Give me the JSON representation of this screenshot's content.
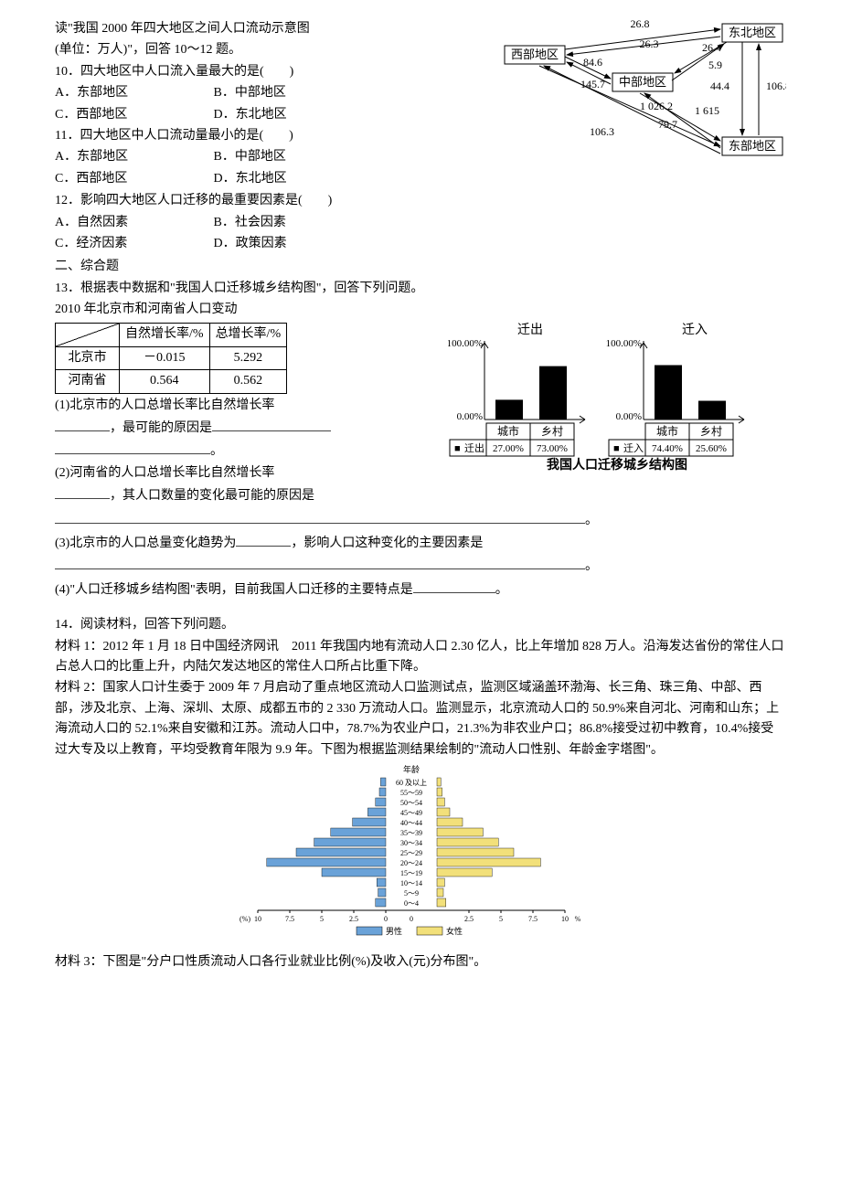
{
  "intro1": "读\"我国 2000 年四大地区之间人口流动示意图",
  "intro2": "(单位：万人)\"，回答 10～12 题。",
  "q10": {
    "stem": "10．四大地区中人口流入量最大的是(　　)",
    "a": "A．东部地区",
    "b": "B．中部地区",
    "c": "C．西部地区",
    "d": "D．东北地区"
  },
  "q11": {
    "stem": "11．四大地区中人口流动量最小的是(　　)",
    "a": "A．东部地区",
    "b": "B．中部地区",
    "c": "C．西部地区",
    "d": "D．东北地区"
  },
  "q12": {
    "stem": "12．影响四大地区人口迁移的最重要因素是(　　)",
    "a": "A．自然因素",
    "b": "B．社会因素",
    "c": "C．经济因素",
    "d": "D．政策因素"
  },
  "sec2": "二、综合题",
  "q13stem": "13．根据表中数据和\"我国人口迁移城乡结构图\"，回答下列问题。",
  "q13tabletitle": "2010 年北京市和河南省人口变动",
  "q13table": {
    "col1": "自然增长率/%",
    "col2": "总增长率/%",
    "r1name": "北京市",
    "r1a": "－0.015",
    "r1b": "5.292",
    "r2name": "河南省",
    "r2a": "0.564",
    "r2b": "0.562"
  },
  "q13_1a": "(1)北京市的人口总增长率比自然增长率",
  "q13_1b": "，最可能的原因是",
  "q13_1c": "。",
  "q13_2a": "(2)河南省的人口总增长率比自然增长率",
  "q13_2b": "，其人口数量的变化最可能的原因是",
  "q13_2end": "。",
  "q13_3a": "(3)北京市的人口总量变化趋势为",
  "q13_3b": "，影响人口这种变化的主要因素是",
  "q13_3end": "。",
  "q13_4a": "(4)\"人口迁移城乡结构图\"表明，目前我国人口迁移的主要特点是",
  "q13_4end": "。",
  "flowchart": {
    "nodes": {
      "west": "西部地区",
      "northeast": "东北地区",
      "central": "中部地区",
      "east": "东部地区"
    },
    "values": {
      "a": "26.8",
      "b": "26.3",
      "c": "26.4",
      "d": "5.9",
      "e": "84.6",
      "f": "145.7",
      "g": "44.4",
      "h": "106.8",
      "i": "1 026.2",
      "j": "1 615",
      "k": "106.3",
      "l": "79.7"
    },
    "box_stroke": "#000",
    "box_fill": "#fff",
    "arrow_color": "#000",
    "font_size": 13
  },
  "barchart": {
    "type": "bar-pair",
    "out_label": "迁出",
    "in_label": "迁入",
    "y_top": "100.00%",
    "y_bot": "0.00%",
    "x1": "城市",
    "x2": "乡村",
    "leg_out": "迁出",
    "leg_in": "迁入",
    "out_city": "27.00%",
    "out_rural": "73.00%",
    "in_city": "74.40%",
    "in_rural": "25.60%",
    "out_city_v": 27,
    "out_rural_v": 73,
    "in_city_v": 74.4,
    "in_rural_v": 25.6,
    "bar_color": "#000",
    "grid_color": "#000",
    "caption": "我国人口迁移城乡结构图",
    "marker": "■"
  },
  "q14stem": "14．阅读材料，回答下列问题。",
  "mat1": "材料 1：2012 年 1 月 18 日中国经济网讯　2011 年我国内地有流动人口 2.30 亿人，比上年增加 828 万人。沿海发达省份的常住人口占总人口的比重上升，内陆欠发达地区的常住人口所占比重下降。",
  "mat2": "材料 2：国家人口计生委于 2009 年 7 月启动了重点地区流动人口监测试点，监测区域涵盖环渤海、长三角、珠三角、中部、西部，涉及北京、上海、深圳、太原、成都五市的 2 330 万流动人口。监测显示，北京流动人口的 50.9%来自河北、河南和山东；上海流动人口的 52.1%来自安徽和江苏。流动人口中，78.7%为农业户口，21.3%为非农业户口；86.8%接受过初中教育，10.4%接受过大专及以上教育，平均受教育年限为 9.9 年。下图为根据监测结果绘制的\"流动人口性别、年龄金字塔图\"。",
  "mat3": "材料 3：下图是\"分户口性质流动人口各行业就业比例(%)及收入(元)分布图\"。",
  "pyramid": {
    "type": "population-pyramid",
    "age_labels": [
      "60 及以上",
      "55～59",
      "50～54",
      "45～49",
      "40～44",
      "35～39",
      "30～34",
      "25～29",
      "20～24",
      "15～19",
      "10～14",
      "5～9",
      "0～4"
    ],
    "age_title": "年龄",
    "x_ticks": [
      "10",
      "7.5",
      "5",
      "2.5",
      "0",
      "2.5",
      "5",
      "7.5",
      "10"
    ],
    "x_unit": "(%)",
    "male_label": "男性",
    "female_label": "女性",
    "male_color": "#6aa2d8",
    "female_color": "#f2e07a",
    "male_vals": [
      0.4,
      0.5,
      0.8,
      1.4,
      2.6,
      4.3,
      5.6,
      7.0,
      9.3,
      5.0,
      0.7,
      0.6,
      0.8
    ],
    "female_vals": [
      0.3,
      0.4,
      0.6,
      1.0,
      2.0,
      3.6,
      4.8,
      6.0,
      8.1,
      4.3,
      0.6,
      0.5,
      0.7
    ],
    "grid_color": "#000",
    "bg": "#fff",
    "font_size": 9
  }
}
